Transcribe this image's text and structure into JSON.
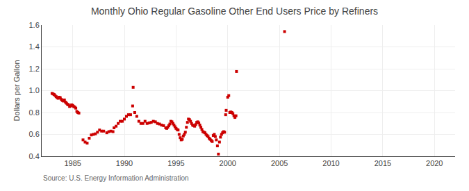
{
  "chart_data": {
    "type": "scatter",
    "title": "Monthly Ohio Regular Gasoline Other End Users Price by Refiners",
    "ylabel": "Dollars per Gallon",
    "annotations": [
      "Source: U.S. Energy Information Administration"
    ],
    "color": "#cc0000",
    "marker": "square",
    "grid": true,
    "xlim": [
      1982,
      2022
    ],
    "ylim": [
      0.4,
      1.6
    ],
    "xticks": [
      1985,
      1990,
      1995,
      2000,
      2005,
      2010,
      2015,
      2020
    ],
    "yticks": [
      0.4,
      0.6,
      0.8,
      {
        "value": 1.0,
        "label": "1.0"
      },
      1.2,
      1.4,
      1.6
    ],
    "x": [
      1983.0,
      1983.1,
      1983.2,
      1983.3,
      1983.4,
      1983.5,
      1983.6,
      1983.7,
      1983.8,
      1983.9,
      1984.0,
      1984.1,
      1984.2,
      1984.3,
      1984.4,
      1984.5,
      1984.6,
      1984.7,
      1984.8,
      1984.9,
      1985.0,
      1985.1,
      1985.2,
      1985.3,
      1985.4,
      1985.5,
      1985.6,
      1986.0,
      1986.2,
      1986.4,
      1986.6,
      1986.8,
      1987.0,
      1987.2,
      1987.4,
      1987.6,
      1987.8,
      1988.0,
      1988.3,
      1988.5,
      1988.7,
      1988.9,
      1989.0,
      1989.2,
      1989.4,
      1989.6,
      1989.8,
      1990.0,
      1990.2,
      1990.4,
      1990.6,
      1990.8,
      1990.85,
      1991.0,
      1991.2,
      1991.4,
      1991.6,
      1991.8,
      1992.0,
      1992.2,
      1992.4,
      1992.6,
      1992.8,
      1993.0,
      1993.2,
      1993.4,
      1993.6,
      1993.8,
      1994.0,
      1994.1,
      1994.2,
      1994.3,
      1994.4,
      1994.5,
      1994.6,
      1994.7,
      1994.8,
      1994.9,
      1995.0,
      1995.1,
      1995.2,
      1995.3,
      1995.4,
      1995.5,
      1995.6,
      1995.7,
      1995.8,
      1995.9,
      1996.0,
      1996.1,
      1996.2,
      1996.3,
      1996.4,
      1996.5,
      1996.6,
      1996.7,
      1996.8,
      1996.9,
      1997.0,
      1997.1,
      1997.2,
      1997.3,
      1997.4,
      1997.5,
      1997.6,
      1997.7,
      1997.8,
      1997.9,
      1998.0,
      1998.1,
      1998.2,
      1998.3,
      1998.4,
      1998.5,
      1998.6,
      1998.7,
      1998.8,
      1998.9,
      1999.0,
      1999.1,
      1999.2,
      1999.3,
      1999.4,
      1999.5,
      1999.6,
      1999.7,
      1999.8,
      1999.85,
      2000.0,
      2000.1,
      2000.2,
      2000.3,
      2000.4,
      2000.5,
      2000.6,
      2000.7,
      2000.8,
      2000.85,
      2005.5
    ],
    "values": [
      0.975,
      0.97,
      0.965,
      0.955,
      0.945,
      0.935,
      0.93,
      0.94,
      0.935,
      0.92,
      0.91,
      0.905,
      0.915,
      0.895,
      0.885,
      0.875,
      0.87,
      0.855,
      0.86,
      0.87,
      0.865,
      0.855,
      0.85,
      0.84,
      0.81,
      0.8,
      0.795,
      0.55,
      0.53,
      0.52,
      0.565,
      0.595,
      0.6,
      0.605,
      0.62,
      0.64,
      0.63,
      0.63,
      0.615,
      0.625,
      0.63,
      0.625,
      0.66,
      0.675,
      0.7,
      0.72,
      0.72,
      0.74,
      0.765,
      0.78,
      0.78,
      0.86,
      1.03,
      0.8,
      0.765,
      0.72,
      0.7,
      0.7,
      0.72,
      0.7,
      0.705,
      0.71,
      0.72,
      0.715,
      0.7,
      0.695,
      0.685,
      0.68,
      0.66,
      0.655,
      0.665,
      0.68,
      0.695,
      0.72,
      0.715,
      0.7,
      0.685,
      0.67,
      0.655,
      0.645,
      0.64,
      0.6,
      0.57,
      0.55,
      0.555,
      0.585,
      0.6,
      0.62,
      0.665,
      0.71,
      0.74,
      0.735,
      0.72,
      0.7,
      0.685,
      0.68,
      0.675,
      0.69,
      0.71,
      0.715,
      0.705,
      0.685,
      0.665,
      0.645,
      0.625,
      0.62,
      0.615,
      0.6,
      0.59,
      0.58,
      0.565,
      0.555,
      0.545,
      0.535,
      0.59,
      0.6,
      0.58,
      0.55,
      0.495,
      0.42,
      0.53,
      0.575,
      0.6,
      0.615,
      0.625,
      0.62,
      0.78,
      0.82,
      0.94,
      0.955,
      0.8,
      0.805,
      0.8,
      0.79,
      0.77,
      0.755,
      0.77,
      1.175,
      1.54
    ]
  }
}
